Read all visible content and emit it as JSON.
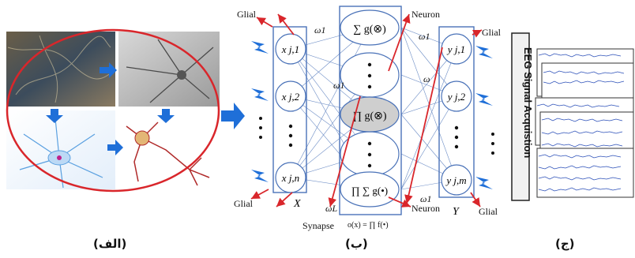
{
  "panels": {
    "a_caption": "(الف)",
    "b_caption": "(ب)",
    "c_caption": "(ج)"
  },
  "network": {
    "glial_top_left": "Glial",
    "glial_bottom_left": "Glial",
    "glial_top_right": "Glial",
    "glial_bottom_right": "Glial",
    "neuron_top": "Neuron",
    "neuron_bottom": "Neuron",
    "synapse": "Synapse",
    "synapse_formula": "o(x) = ∏ f(•)",
    "input_layer_label": "X",
    "output_layer_label": "Y",
    "inputs": [
      "x j,1",
      "x j,2",
      "x j,n"
    ],
    "outputs": [
      "y j,1",
      "y j,2",
      "y j,m"
    ],
    "hidden_top": "∑ g(⊗)",
    "hidden_mid": "∏ g(⊗)",
    "hidden_bottom": "∏ ∑ g(•)",
    "weights": [
      "ω1",
      "ω1",
      "ωL",
      "ω1",
      "ω",
      "ω1"
    ]
  },
  "eeg": {
    "label": "EEG Signal Acquistion"
  },
  "colors": {
    "arrow_blue": "#1f6fd8",
    "red": "#d9262b",
    "box_blue": "#4a72b8"
  }
}
